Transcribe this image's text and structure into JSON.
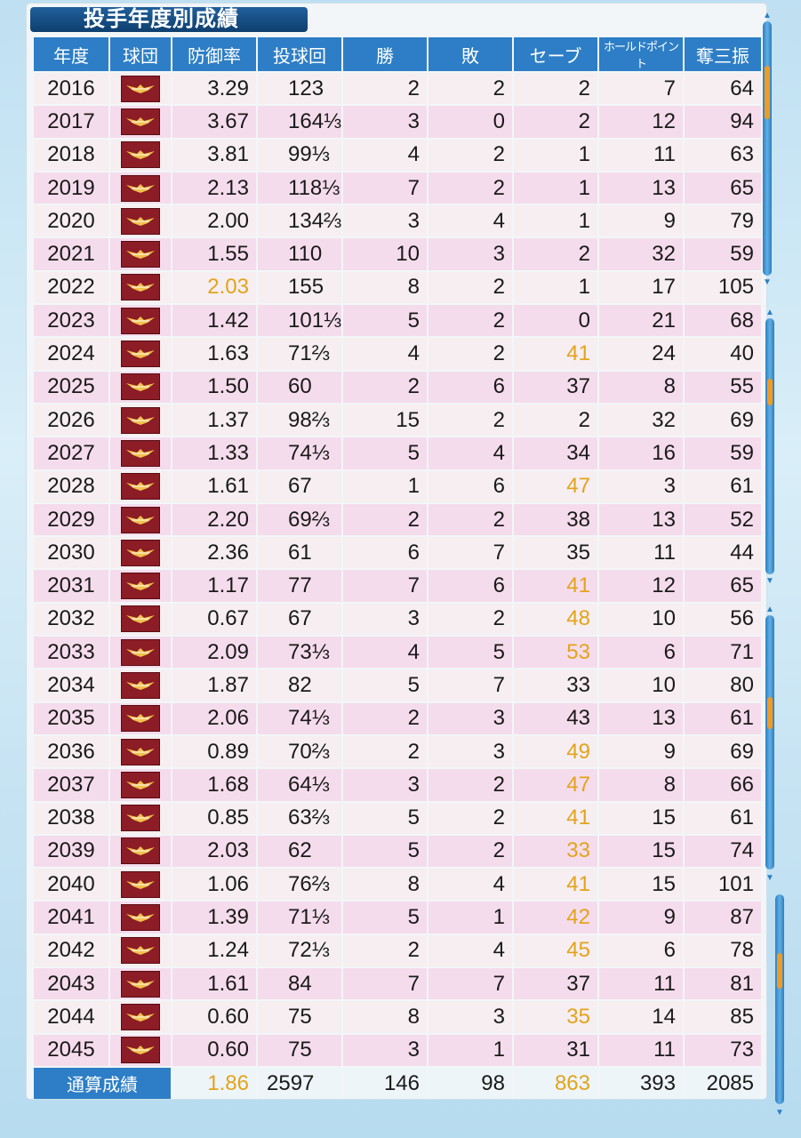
{
  "title": "投手年度別成績",
  "headers": [
    "年度",
    "球団",
    "防御率",
    "投球回",
    "勝",
    "敗",
    "セーブ",
    "ホールドポイント",
    "奪三振"
  ],
  "rows": [
    {
      "year": "2016",
      "era": "3.29",
      "ip": "123",
      "w": "2",
      "l": "2",
      "sv": "2",
      "hp": "7",
      "so": "64"
    },
    {
      "year": "2017",
      "era": "3.67",
      "ip": "164⅓",
      "w": "3",
      "l": "0",
      "sv": "2",
      "hp": "12",
      "so": "94"
    },
    {
      "year": "2018",
      "era": "3.81",
      "ip": "99⅓",
      "w": "4",
      "l": "2",
      "sv": "1",
      "hp": "11",
      "so": "63"
    },
    {
      "year": "2019",
      "era": "2.13",
      "ip": "118⅓",
      "w": "7",
      "l": "2",
      "sv": "1",
      "hp": "13",
      "so": "65"
    },
    {
      "year": "2020",
      "era": "2.00",
      "ip": "134⅔",
      "w": "3",
      "l": "4",
      "sv": "1",
      "hp": "9",
      "so": "79"
    },
    {
      "year": "2021",
      "era": "1.55",
      "ip": "110",
      "w": "10",
      "l": "3",
      "sv": "2",
      "hp": "32",
      "so": "59"
    },
    {
      "year": "2022",
      "era": "2.03",
      "ip": "155",
      "w": "8",
      "l": "2",
      "sv": "1",
      "hp": "17",
      "so": "105"
    },
    {
      "year": "2023",
      "era": "1.42",
      "ip": "101⅓",
      "w": "5",
      "l": "2",
      "sv": "0",
      "hp": "21",
      "so": "68"
    },
    {
      "year": "2024",
      "era": "1.63",
      "ip": "71⅔",
      "w": "4",
      "l": "2",
      "sv": "41",
      "hp": "24",
      "so": "40"
    },
    {
      "year": "2025",
      "era": "1.50",
      "ip": "60",
      "w": "2",
      "l": "6",
      "sv": "37",
      "hp": "8",
      "so": "55"
    },
    {
      "year": "2026",
      "era": "1.37",
      "ip": "98⅔",
      "w": "15",
      "l": "2",
      "sv": "2",
      "hp": "32",
      "so": "69"
    },
    {
      "year": "2027",
      "era": "1.33",
      "ip": "74⅓",
      "w": "5",
      "l": "4",
      "sv": "34",
      "hp": "16",
      "so": "59"
    },
    {
      "year": "2028",
      "era": "1.61",
      "ip": "67",
      "w": "1",
      "l": "6",
      "sv": "47",
      "hp": "3",
      "so": "61"
    },
    {
      "year": "2029",
      "era": "2.20",
      "ip": "69⅔",
      "w": "2",
      "l": "2",
      "sv": "38",
      "hp": "13",
      "so": "52"
    },
    {
      "year": "2030",
      "era": "2.36",
      "ip": "61",
      "w": "6",
      "l": "7",
      "sv": "35",
      "hp": "11",
      "so": "44"
    },
    {
      "year": "2031",
      "era": "1.17",
      "ip": "77",
      "w": "7",
      "l": "6",
      "sv": "41",
      "hp": "12",
      "so": "65"
    },
    {
      "year": "2032",
      "era": "0.67",
      "ip": "67",
      "w": "3",
      "l": "2",
      "sv": "48",
      "hp": "10",
      "so": "56"
    },
    {
      "year": "2033",
      "era": "2.09",
      "ip": "73⅓",
      "w": "4",
      "l": "5",
      "sv": "53",
      "hp": "6",
      "so": "71"
    },
    {
      "year": "2034",
      "era": "1.87",
      "ip": "82",
      "w": "5",
      "l": "7",
      "sv": "33",
      "hp": "10",
      "so": "80"
    },
    {
      "year": "2035",
      "era": "2.06",
      "ip": "74⅓",
      "w": "2",
      "l": "3",
      "sv": "43",
      "hp": "13",
      "so": "61"
    },
    {
      "year": "2036",
      "era": "0.89",
      "ip": "70⅔",
      "w": "2",
      "l": "3",
      "sv": "49",
      "hp": "9",
      "so": "69"
    },
    {
      "year": "2037",
      "era": "1.68",
      "ip": "64⅓",
      "w": "3",
      "l": "2",
      "sv": "47",
      "hp": "8",
      "so": "66"
    },
    {
      "year": "2038",
      "era": "0.85",
      "ip": "63⅔",
      "w": "5",
      "l": "2",
      "sv": "41",
      "hp": "15",
      "so": "61"
    },
    {
      "year": "2039",
      "era": "2.03",
      "ip": "62",
      "w": "5",
      "l": "2",
      "sv": "33",
      "hp": "15",
      "so": "74"
    },
    {
      "year": "2040",
      "era": "1.06",
      "ip": "76⅔",
      "w": "8",
      "l": "4",
      "sv": "41",
      "hp": "15",
      "so": "101"
    },
    {
      "year": "2041",
      "era": "1.39",
      "ip": "71⅓",
      "w": "5",
      "l": "1",
      "sv": "42",
      "hp": "9",
      "so": "87"
    },
    {
      "year": "2042",
      "era": "1.24",
      "ip": "72⅓",
      "w": "2",
      "l": "4",
      "sv": "45",
      "hp": "6",
      "so": "78"
    },
    {
      "year": "2043",
      "era": "1.61",
      "ip": "84",
      "w": "7",
      "l": "7",
      "sv": "37",
      "hp": "11",
      "so": "81"
    },
    {
      "year": "2044",
      "era": "0.60",
      "ip": "75",
      "w": "8",
      "l": "3",
      "sv": "35",
      "hp": "14",
      "so": "85"
    },
    {
      "year": "2045",
      "era": "0.60",
      "ip": "75",
      "w": "3",
      "l": "1",
      "sv": "31",
      "hp": "11",
      "so": "73"
    }
  ],
  "highlight": {
    "2022": [
      "era"
    ],
    "2024": [
      "sv"
    ],
    "2028": [
      "sv"
    ],
    "2031": [
      "sv"
    ],
    "2032": [
      "sv"
    ],
    "2033": [
      "sv"
    ],
    "2036": [
      "sv"
    ],
    "2037": [
      "sv"
    ],
    "2038": [
      "sv"
    ],
    "2039": [
      "sv"
    ],
    "2040": [
      "sv"
    ],
    "2041": [
      "sv"
    ],
    "2042": [
      "sv"
    ],
    "2044": [
      "sv"
    ]
  },
  "totals": {
    "label": "通算成績",
    "era": "1.86",
    "ip": "2597",
    "w": "146",
    "l": "98",
    "sv": "863",
    "hp": "393",
    "so": "2085"
  },
  "totals_highlight": [
    "era",
    "sv"
  ],
  "team_logo": "eagles-logo",
  "colors": {
    "header_blue": "#2d7ec6",
    "highlight": "#e3a31b",
    "logo": "#8c1c26"
  }
}
